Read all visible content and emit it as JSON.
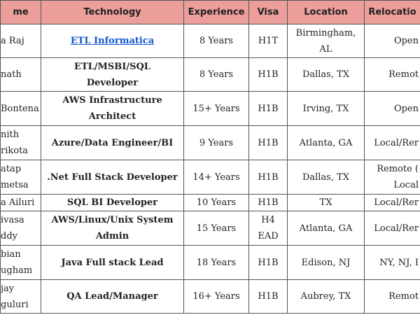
{
  "table": {
    "headers": [
      "me",
      "Technology",
      "Experience",
      "Visa",
      "Location",
      "Relocatio"
    ],
    "rows": [
      [
        [
          "a Raj"
        ],
        [
          "ETL Informatica"
        ],
        [
          "8 Years"
        ],
        [
          "H1T"
        ],
        [
          "Birmingham,",
          "AL"
        ],
        [
          "Open"
        ]
      ],
      [
        [
          "nath"
        ],
        [
          "ETL/MSBI/SQL",
          "Developer"
        ],
        [
          "8 Years"
        ],
        [
          "H1B"
        ],
        [
          "Dallas, TX"
        ],
        [
          "Remot"
        ]
      ],
      [
        [
          "Bontena"
        ],
        [
          "AWS Infrastructure",
          "Architect"
        ],
        [
          "15+ Years"
        ],
        [
          "H1B"
        ],
        [
          "Irving, TX"
        ],
        [
          "Open"
        ]
      ],
      [
        [
          "nith",
          "rikota"
        ],
        [
          "Azure/Data Engineer/BI"
        ],
        [
          "9 Years"
        ],
        [
          "H1B"
        ],
        [
          "Atlanta, GA"
        ],
        [
          "Local/Rer"
        ]
      ],
      [
        [
          "atap",
          "metsa"
        ],
        [
          ".Net Full Stack Developer"
        ],
        [
          "14+ Years"
        ],
        [
          "H1B"
        ],
        [
          "Dallas, TX"
        ],
        [
          "Remote (",
          "Local"
        ]
      ],
      [
        [
          "a Ailuri"
        ],
        [
          "SQL BI Developer"
        ],
        [
          "10 Years"
        ],
        [
          "H1B"
        ],
        [
          "TX"
        ],
        [
          "Local/Rer"
        ]
      ],
      [
        [
          "ivasa",
          "ddy"
        ],
        [
          "AWS/Linux/Unix System",
          "Admin"
        ],
        [
          "15 Years"
        ],
        [
          "H4",
          "EAD"
        ],
        [
          "Atlanta, GA"
        ],
        [
          "Local/Rer"
        ]
      ],
      [
        [
          "bian",
          "ugham"
        ],
        [
          "Java Full stack Lead"
        ],
        [
          "18 Years"
        ],
        [
          "H1B"
        ],
        [
          "Edison, NJ"
        ],
        [
          "NY, NJ, I"
        ]
      ],
      [
        [
          "jay",
          "guluri"
        ],
        [
          "QA Lead/Manager"
        ],
        [
          "16+ Years"
        ],
        [
          "H1B"
        ],
        [
          "Aubrey, TX"
        ],
        [
          "Remot"
        ]
      ]
    ]
  }
}
